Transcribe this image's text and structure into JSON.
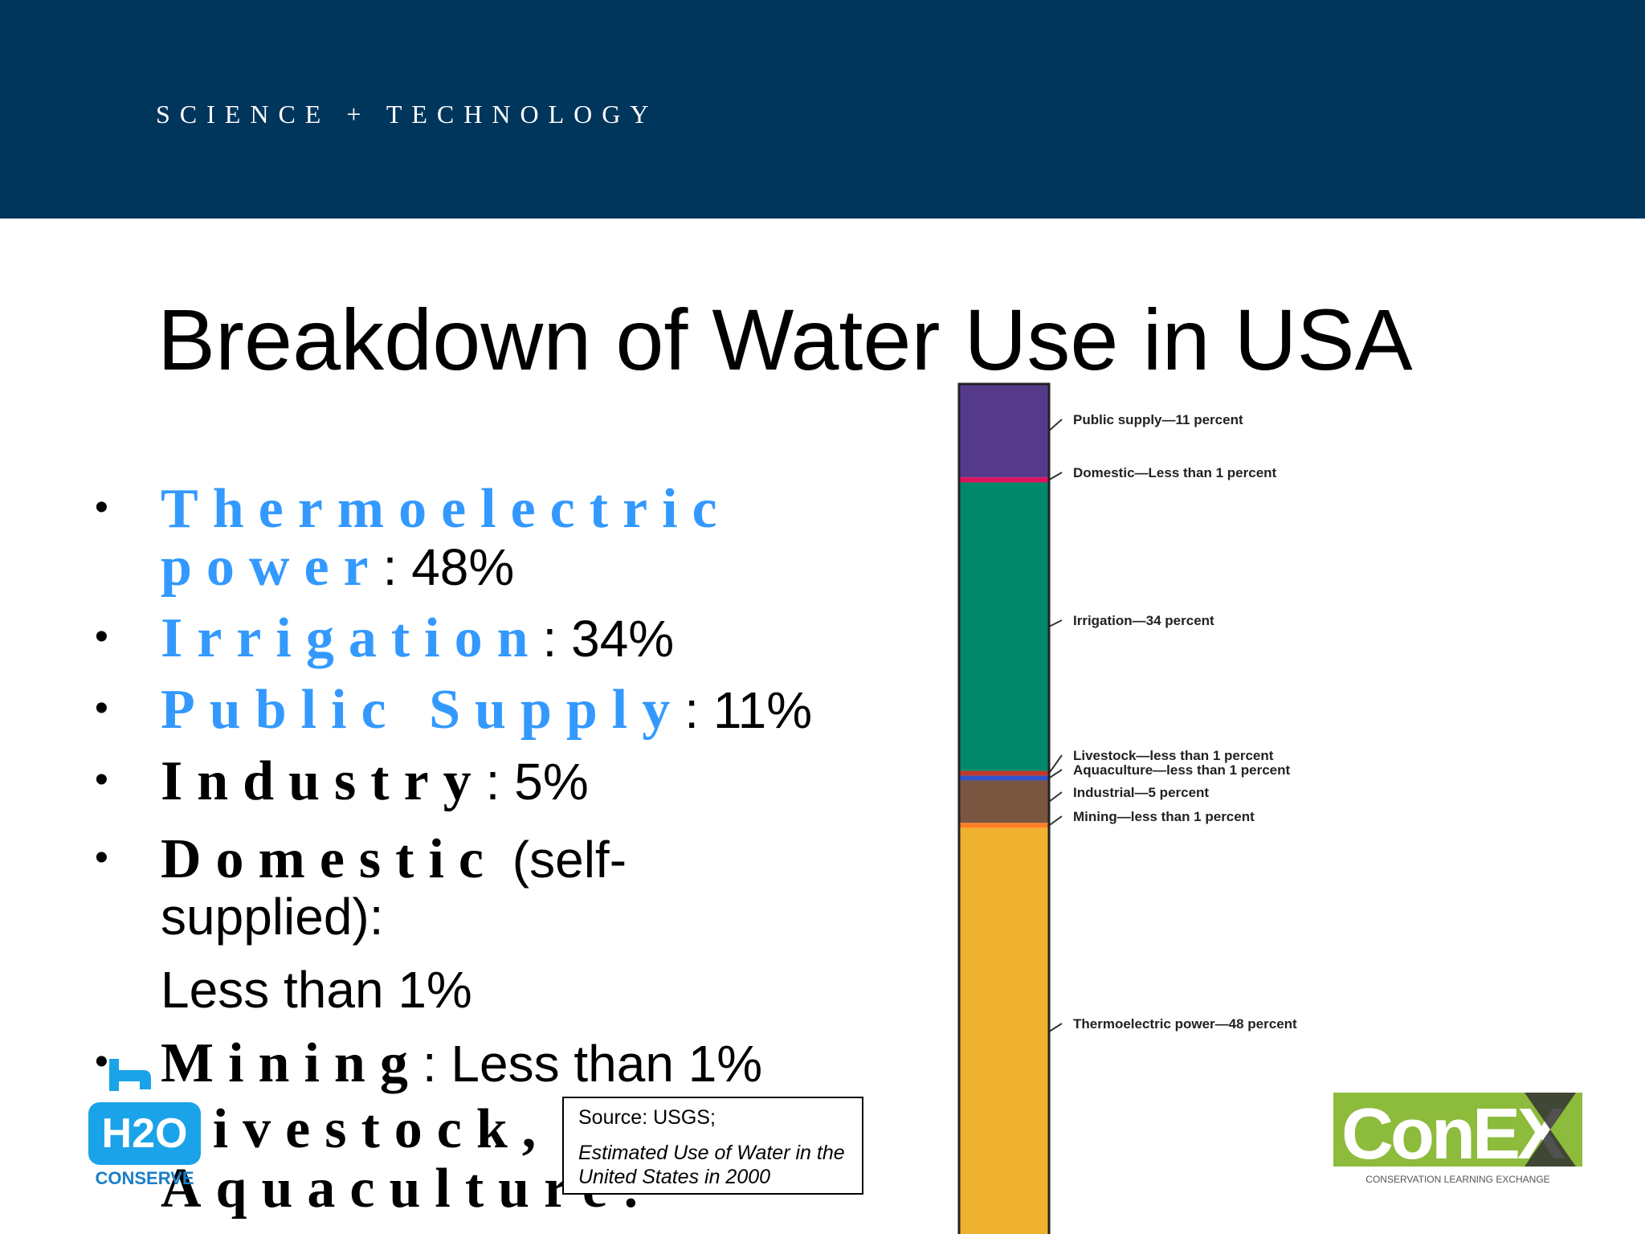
{
  "header": {
    "text": "SCIENCE + TECHNOLOGY"
  },
  "title": "Breakdown of Water Use in USA",
  "bullets": [
    {
      "label": "Thermoelectric",
      "label2": "power",
      "value": ": 48%",
      "highlight": true
    },
    {
      "label": "Irrigation",
      "value": ": 34%",
      "highlight": true
    },
    {
      "label": "Public Supply",
      "value": ": 11%",
      "highlight": true
    },
    {
      "label": "Industry",
      "value": ": 5%",
      "highlight": false
    },
    {
      "label": "Domestic",
      "value": "(self-",
      "value2": "supplied):",
      "value3": "Less than 1%",
      "highlight": false
    },
    {
      "label": "Mining",
      "value": ": Less than 1%",
      "highlight": false
    },
    {
      "label": "Livestock,",
      "label2": "Aquaculture:",
      "highlight": false
    }
  ],
  "source": {
    "line1": "Source: USGS;",
    "line2": "Estimated Use of Water in the United States in 2000"
  },
  "logos": {
    "h2o_text": "H2O",
    "h2o_sub": "CONSERVE",
    "conex_text": "ConEX",
    "conex_sub": "CONSERVATION LEARNING EXCHANGE"
  },
  "colors": {
    "header_bg": "#00355c",
    "keyword": "#3399ff"
  },
  "chart_data": {
    "type": "bar",
    "stacked": true,
    "segments": [
      {
        "name": "Public supply",
        "label": "Public supply—11 percent",
        "value": 11,
        "color": "#553a8c"
      },
      {
        "name": "Domestic",
        "label": "Domestic—Less than 1 percent",
        "value": 0.6,
        "color": "#e0115f"
      },
      {
        "name": "Irrigation",
        "label": "Irrigation—34 percent",
        "value": 34,
        "color": "#00896b"
      },
      {
        "name": "Livestock",
        "label": "Livestock—less than 1 percent",
        "value": 0.4,
        "color": "#c0392b"
      },
      {
        "name": "Aquaculture",
        "label": "Aquaculture—less than 1 percent",
        "value": 0.4,
        "color": "#3355cc"
      },
      {
        "name": "Industrial",
        "label": "Industrial—5 percent",
        "value": 5,
        "color": "#7a5540"
      },
      {
        "name": "Mining",
        "label": "Mining—less than 1 percent",
        "value": 0.6,
        "color": "#ff7f27"
      },
      {
        "name": "Thermoelectric power",
        "label": "Thermoelectric power—48 percent",
        "value": 48,
        "color": "#efb22e"
      }
    ]
  }
}
